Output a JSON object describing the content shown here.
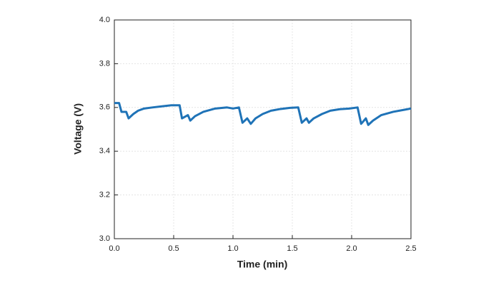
{
  "chart_data": {
    "type": "line",
    "x_label": "Time (min)",
    "y_label": "Voltage (V)",
    "x": [
      0,
      0.04,
      0.06,
      0.1,
      0.12,
      0.16,
      0.2,
      0.25,
      0.32,
      0.4,
      0.48,
      0.55,
      0.57,
      0.62,
      0.64,
      0.68,
      0.75,
      0.85,
      0.95,
      1.0,
      1.05,
      1.08,
      1.12,
      1.15,
      1.19,
      1.25,
      1.32,
      1.4,
      1.48,
      1.55,
      1.58,
      1.62,
      1.64,
      1.68,
      1.75,
      1.82,
      1.9,
      1.98,
      2.05,
      2.08,
      2.12,
      2.14,
      2.18,
      2.25,
      2.35,
      2.45,
      2.5
    ],
    "values": [
      3.62,
      3.62,
      3.58,
      3.58,
      3.55,
      3.57,
      3.585,
      3.595,
      3.6,
      3.605,
      3.61,
      3.61,
      3.55,
      3.565,
      3.54,
      3.56,
      3.58,
      3.595,
      3.6,
      3.595,
      3.6,
      3.53,
      3.55,
      3.525,
      3.55,
      3.57,
      3.585,
      3.593,
      3.598,
      3.6,
      3.53,
      3.55,
      3.53,
      3.55,
      3.57,
      3.585,
      3.592,
      3.595,
      3.6,
      3.525,
      3.55,
      3.52,
      3.54,
      3.565,
      3.58,
      3.59,
      3.595
    ],
    "color": "#1f73b7",
    "xlim": [
      0,
      2.5
    ],
    "ylim": [
      3.0,
      4.0
    ],
    "xticks": [
      {
        "value": 0,
        "label": "0.0"
      },
      {
        "value": 0.5,
        "label": "0.5"
      },
      {
        "value": 1,
        "label": "1.0"
      },
      {
        "value": 1.5,
        "label": "1.5"
      },
      {
        "value": 2,
        "label": "2.0"
      },
      {
        "value": 2.5,
        "label": "2.5"
      }
    ],
    "yticks": [
      {
        "value": 3.0,
        "label": "3.0"
      },
      {
        "value": 3.2,
        "label": "3.2"
      },
      {
        "value": 3.4,
        "label": "3.4"
      },
      {
        "value": 3.6,
        "label": "3.6"
      },
      {
        "value": 3.8,
        "label": "3.8"
      },
      {
        "value": 4.0,
        "label": "4.0"
      }
    ],
    "grid": true
  }
}
